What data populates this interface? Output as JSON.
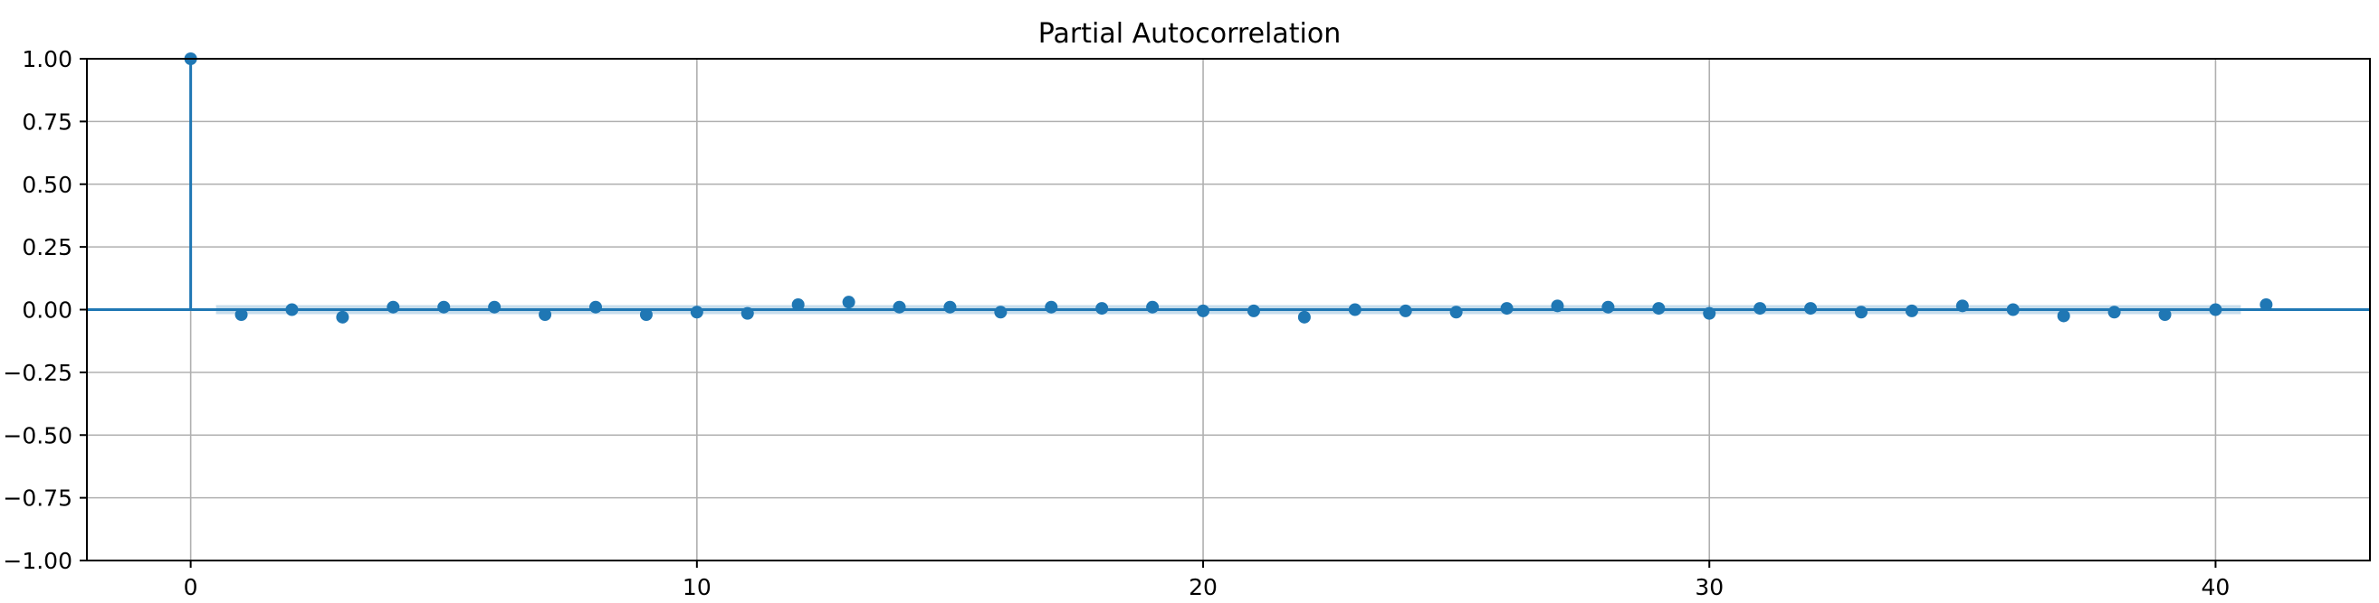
{
  "chart_data": {
    "type": "stem",
    "title": "Partial Autocorrelation",
    "xlabel": "",
    "ylabel": "",
    "xlim": [
      -2.05,
      43.05
    ],
    "ylim": [
      -1.0,
      1.0
    ],
    "xticks": [
      0,
      10,
      20,
      30,
      40
    ],
    "yticks": [
      1.0,
      0.75,
      0.5,
      0.25,
      0.0,
      -0.25,
      -0.5,
      -0.75,
      -1.0
    ],
    "ytick_labels": [
      "1.00",
      "0.75",
      "0.50",
      "0.25",
      "0.00",
      "−0.25",
      "−0.50",
      "−0.75",
      "−1.00"
    ],
    "xtick_labels": [
      "0",
      "10",
      "20",
      "30",
      "40"
    ],
    "grid": true,
    "lags": [
      0,
      1,
      2,
      3,
      4,
      5,
      6,
      7,
      8,
      9,
      10,
      11,
      12,
      13,
      14,
      15,
      16,
      17,
      18,
      19,
      20,
      21,
      22,
      23,
      24,
      25,
      26,
      27,
      28,
      29,
      30,
      31,
      32,
      33,
      34,
      35,
      36,
      37,
      38,
      39,
      40,
      41
    ],
    "values": [
      1.0,
      -0.02,
      0.0,
      -0.03,
      0.01,
      0.01,
      0.01,
      -0.02,
      0.01,
      -0.02,
      -0.01,
      -0.015,
      0.02,
      0.03,
      0.01,
      0.01,
      -0.01,
      0.01,
      0.005,
      0.01,
      -0.005,
      -0.005,
      -0.03,
      0.0,
      -0.005,
      -0.01,
      0.005,
      0.015,
      0.01,
      0.005,
      -0.015,
      0.005,
      0.005,
      -0.01,
      -0.005,
      0.015,
      0.0,
      -0.025,
      -0.01,
      -0.02,
      0.0,
      0.02
    ],
    "confidence_interval": [
      0.018,
      0.018,
      0.018,
      0.018,
      0.018,
      0.018,
      0.018,
      0.018,
      0.018,
      0.018,
      0.018,
      0.018,
      0.018,
      0.018,
      0.018,
      0.018,
      0.018,
      0.018,
      0.018,
      0.018,
      0.018,
      0.018,
      0.018,
      0.018,
      0.018,
      0.018,
      0.018,
      0.018,
      0.018,
      0.018,
      0.018,
      0.018,
      0.018,
      0.018,
      0.018,
      0.018,
      0.018,
      0.018,
      0.018,
      0.018,
      0.018
    ],
    "colors": {
      "series": "#1f77b4",
      "band": "#1f77b4",
      "grid": "#b0b0b0"
    }
  }
}
